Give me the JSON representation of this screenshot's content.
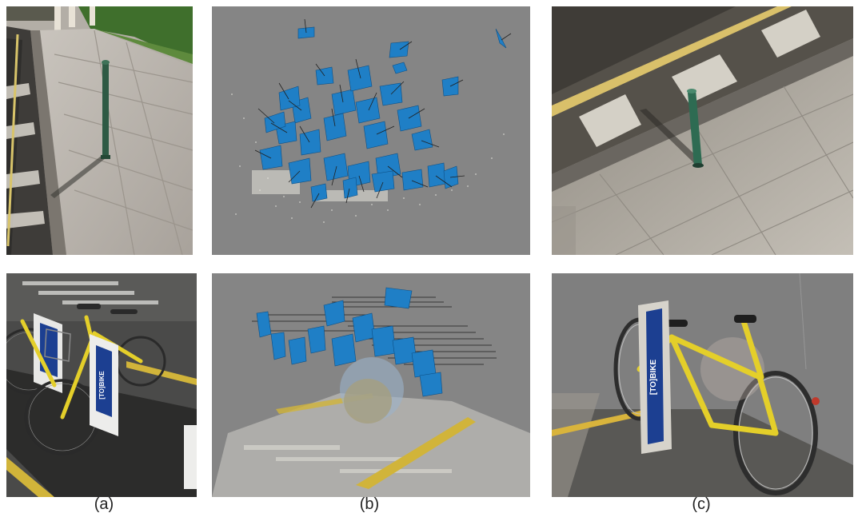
{
  "figure": {
    "captions": {
      "a": "(a)",
      "b": "(b)",
      "c": "(c)"
    },
    "panels": {
      "a_top": "photo-sidewalk-bollard",
      "b_top": "sfm-camera-poses-bollard",
      "c_top": "dense-reconstruction-bollard",
      "a_bottom": "photo-bike-sharing-station",
      "b_bottom": "sfm-camera-poses-bike",
      "c_bottom": "dense-reconstruction-bike"
    },
    "station_logo_text": "[TO]BIKE",
    "colors": {
      "background_gray": "#858585",
      "camera_blue": "#1f7fc6",
      "bike_yellow": "#e4cf2a",
      "station_blue": "#1c3f91",
      "bollard_green": "#2e5a44"
    }
  }
}
